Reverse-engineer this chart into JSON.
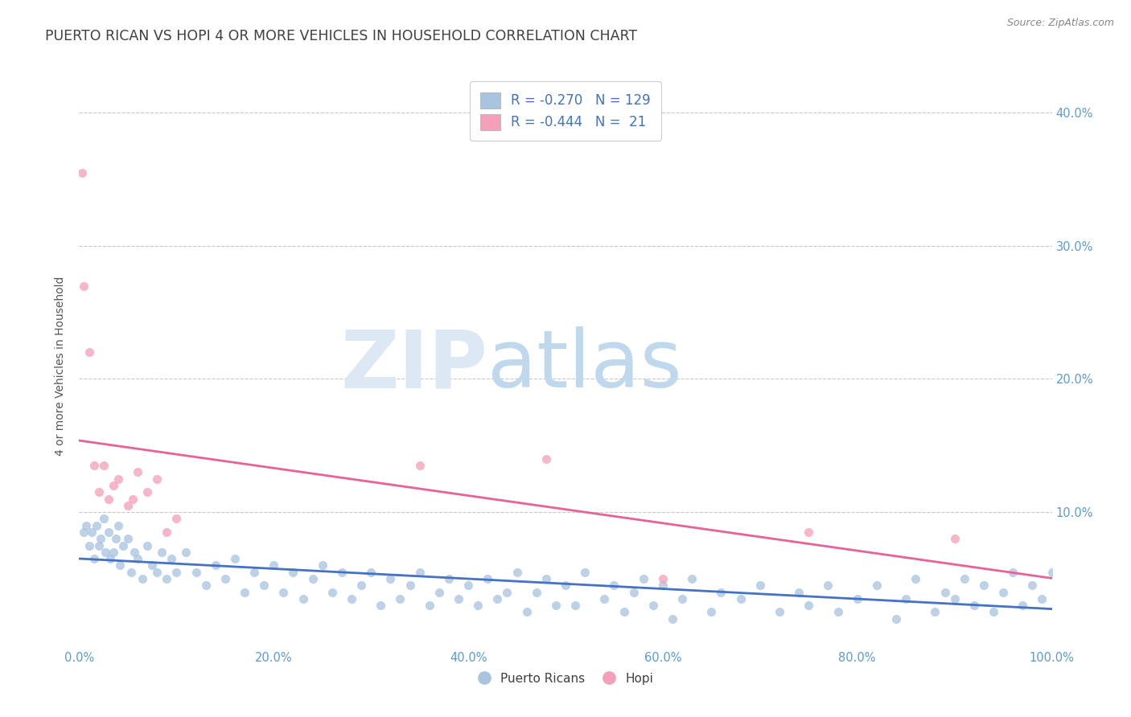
{
  "title": "PUERTO RICAN VS HOPI 4 OR MORE VEHICLES IN HOUSEHOLD CORRELATION CHART",
  "source": "Source: ZipAtlas.com",
  "ylabel": "4 or more Vehicles in Household",
  "xlim": [
    0,
    100
  ],
  "ylim": [
    0,
    42
  ],
  "xticks": [
    0,
    20,
    40,
    60,
    80,
    100
  ],
  "xticklabels": [
    "0.0%",
    "20.0%",
    "40.0%",
    "60.0%",
    "80.0%",
    "100.0%"
  ],
  "yticks": [
    0,
    10,
    20,
    30,
    40
  ],
  "yticklabels_right": [
    "",
    "10.0%",
    "20.0%",
    "30.0%",
    "40.0%"
  ],
  "legend_labels": [
    "Puerto Ricans",
    "Hopi"
  ],
  "blue_R": "-0.270",
  "blue_N": "129",
  "pink_R": "-0.444",
  "pink_N": "21",
  "blue_color": "#a8c4e0",
  "pink_color": "#f4a0b8",
  "blue_line_color": "#4472c4",
  "pink_line_color": "#e8629a",
  "title_color": "#404040",
  "axis_color": "#5b9bd5",
  "legend_text_color": "#4472c4",
  "blue_points_x": [
    0.5,
    0.7,
    1.0,
    1.3,
    1.5,
    1.8,
    2.0,
    2.2,
    2.5,
    2.7,
    3.0,
    3.2,
    3.5,
    3.8,
    4.0,
    4.2,
    4.5,
    5.0,
    5.3,
    5.7,
    6.0,
    6.5,
    7.0,
    7.5,
    8.0,
    8.5,
    9.0,
    9.5,
    10.0,
    11.0,
    12.0,
    13.0,
    14.0,
    15.0,
    16.0,
    17.0,
    18.0,
    19.0,
    20.0,
    21.0,
    22.0,
    23.0,
    24.0,
    25.0,
    26.0,
    27.0,
    28.0,
    29.0,
    30.0,
    31.0,
    32.0,
    33.0,
    34.0,
    35.0,
    36.0,
    37.0,
    38.0,
    39.0,
    40.0,
    41.0,
    42.0,
    43.0,
    44.0,
    45.0,
    46.0,
    47.0,
    48.0,
    49.0,
    50.0,
    51.0,
    52.0,
    54.0,
    55.0,
    56.0,
    57.0,
    58.0,
    59.0,
    60.0,
    61.0,
    62.0,
    63.0,
    65.0,
    66.0,
    68.0,
    70.0,
    72.0,
    74.0,
    75.0,
    77.0,
    78.0,
    80.0,
    82.0,
    84.0,
    85.0,
    86.0,
    88.0,
    89.0,
    90.0,
    91.0,
    92.0,
    93.0,
    94.0,
    95.0,
    96.0,
    97.0,
    98.0,
    99.0,
    100.0,
    100.5,
    101.0
  ],
  "blue_points_y": [
    8.5,
    9.0,
    7.5,
    8.5,
    6.5,
    9.0,
    7.5,
    8.0,
    9.5,
    7.0,
    8.5,
    6.5,
    7.0,
    8.0,
    9.0,
    6.0,
    7.5,
    8.0,
    5.5,
    7.0,
    6.5,
    5.0,
    7.5,
    6.0,
    5.5,
    7.0,
    5.0,
    6.5,
    5.5,
    7.0,
    5.5,
    4.5,
    6.0,
    5.0,
    6.5,
    4.0,
    5.5,
    4.5,
    6.0,
    4.0,
    5.5,
    3.5,
    5.0,
    6.0,
    4.0,
    5.5,
    3.5,
    4.5,
    5.5,
    3.0,
    5.0,
    3.5,
    4.5,
    5.5,
    3.0,
    4.0,
    5.0,
    3.5,
    4.5,
    3.0,
    5.0,
    3.5,
    4.0,
    5.5,
    2.5,
    4.0,
    5.0,
    3.0,
    4.5,
    3.0,
    5.5,
    3.5,
    4.5,
    2.5,
    4.0,
    5.0,
    3.0,
    4.5,
    2.0,
    3.5,
    5.0,
    2.5,
    4.0,
    3.5,
    4.5,
    2.5,
    4.0,
    3.0,
    4.5,
    2.5,
    3.5,
    4.5,
    2.0,
    3.5,
    5.0,
    2.5,
    4.0,
    3.5,
    5.0,
    3.0,
    4.5,
    2.5,
    4.0,
    5.5,
    3.0,
    4.5,
    3.5,
    5.5,
    4.0,
    3.0
  ],
  "pink_points_x": [
    0.3,
    0.5,
    1.0,
    1.5,
    2.0,
    2.5,
    3.0,
    3.5,
    4.0,
    5.0,
    5.5,
    6.0,
    7.0,
    8.0,
    9.0,
    10.0,
    35.0,
    48.0,
    60.0,
    75.0,
    90.0
  ],
  "pink_points_y": [
    35.5,
    27.0,
    22.0,
    13.5,
    11.5,
    13.5,
    11.0,
    12.0,
    12.5,
    10.5,
    11.0,
    13.0,
    11.5,
    12.5,
    8.5,
    9.5,
    13.5,
    14.0,
    5.0,
    8.5,
    8.0
  ]
}
